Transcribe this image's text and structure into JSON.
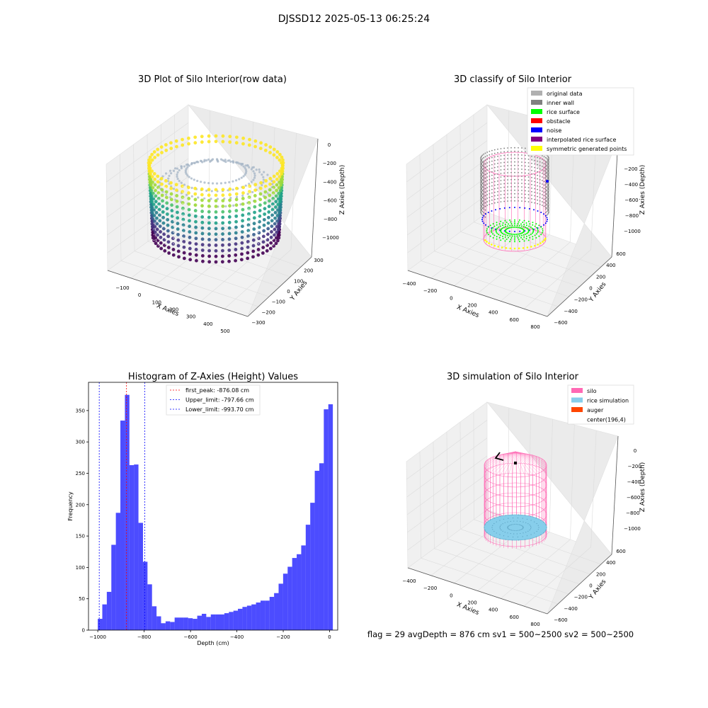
{
  "figure_title": "DJSSD12 2025-05-13 06:25:24",
  "footer": "flag = 29  avgDepth = 876 cm  sv1 = 500~2500  sv2 = 500~2500",
  "colors": {
    "hist": "#0000ff",
    "first_peak": "#ff0000",
    "limits": "#0000ff",
    "silo": "#ff69b4",
    "rice": "#87ceeb",
    "auger": "#ff4500",
    "inner_wall": "#808080",
    "rice_surface": "#00ff00",
    "noise": "#0000ff",
    "symmetric": "#ffff00"
  },
  "chart_data": [
    {
      "type": "scatter3d",
      "title": "3D Plot of Silo Interior(row data)",
      "xlabel": "X Axies",
      "ylabel": "Y Axies",
      "zlabel": "Z Axies (Depth)",
      "xticks": [
        "−100",
        "0",
        "100",
        "200",
        "300",
        "400",
        "500"
      ],
      "yticks": [
        "300",
        "200",
        "100",
        "0",
        "−100",
        "−200",
        "−300"
      ],
      "zticks": [
        "0",
        "−200",
        "−400",
        "−600",
        "−800",
        "−1000"
      ],
      "colormap": "viridis"
    },
    {
      "type": "scatter3d",
      "title": "3D classify of Silo Interior",
      "xlabel": "X Axies",
      "ylabel": "Y Axies",
      "zlabel": "Z Axies (Depth)",
      "xticks": [
        "−400",
        "−200",
        "0",
        "200",
        "400",
        "600",
        "800"
      ],
      "yticks": [
        "600",
        "400",
        "200",
        "0",
        "−200",
        "−400",
        "−600"
      ],
      "zticks": [
        "−200",
        "−400",
        "−600",
        "−800",
        "−1000"
      ],
      "legend_position": "top-right",
      "legend": [
        {
          "label": "original data",
          "color": "#b0b0b0"
        },
        {
          "label": "inner wall",
          "color": "#808080"
        },
        {
          "label": "rice surface",
          "color": "#00ff00"
        },
        {
          "label": "obstacle",
          "color": "#ff0000"
        },
        {
          "label": "noise",
          "color": "#0000ff"
        },
        {
          "label": "interpolated rice surface",
          "color": "#800080"
        },
        {
          "label": "symmetric generated points",
          "color": "#ffff00"
        }
      ]
    },
    {
      "type": "bar",
      "title": "Histogram of Z-Axies (Height) Values",
      "xlabel": "Depth (cm)",
      "ylabel": "Frequency",
      "xlim": [
        -1040,
        35
      ],
      "ylim": [
        0,
        395
      ],
      "grid": false,
      "xticks": [
        -1000,
        -800,
        -600,
        -400,
        -200,
        0
      ],
      "xtick_labels": [
        "−1000",
        "−800",
        "−600",
        "−400",
        "−200",
        "0"
      ],
      "yticks": [
        0,
        50,
        100,
        150,
        200,
        250,
        300,
        350
      ],
      "bin_start": -1000,
      "bin_width": 19.5,
      "values": [
        18,
        41,
        61,
        136,
        187,
        334,
        375,
        263,
        264,
        171,
        109,
        73,
        38,
        22,
        11,
        14,
        13,
        20,
        20,
        20,
        19,
        18,
        23,
        26,
        21,
        25,
        25,
        25,
        27,
        29,
        31,
        34,
        37,
        39,
        41,
        44,
        47,
        47,
        53,
        59,
        74,
        90,
        101,
        115,
        121,
        135,
        168,
        203,
        254,
        266,
        352,
        360
      ],
      "lines": [
        {
          "label": "first_peak: -876.08 cm",
          "x": -876.08,
          "color": "#ff0000"
        },
        {
          "label": "Upper_limit: -797.66 cm",
          "x": -797.66,
          "color": "#0000ff"
        },
        {
          "label": "Lower_limit: -993.70 cm",
          "x": -993.7,
          "color": "#0000ff"
        }
      ],
      "legend_position": "upper-center"
    },
    {
      "type": "scatter3d",
      "title": "3D simulation of Silo Interior",
      "xlabel": "X Axies",
      "ylabel": "Y Axies",
      "zlabel": "Z Axies (Depth)",
      "xticks": [
        "−400",
        "−200",
        "0",
        "200",
        "400",
        "600",
        "800"
      ],
      "yticks": [
        "600",
        "400",
        "200",
        "0",
        "−200",
        "−400",
        "−600"
      ],
      "zticks": [
        "0",
        "−200",
        "−400",
        "−600",
        "−800",
        "−1000"
      ],
      "legend_position": "top-right",
      "legend": [
        {
          "label": "silo",
          "color": "#ff69b4"
        },
        {
          "label": "rice simulation",
          "color": "#87ceeb"
        },
        {
          "label": "auger",
          "color": "#ff4500"
        },
        {
          "label": "center(196,4)",
          "color": "none"
        }
      ]
    }
  ]
}
